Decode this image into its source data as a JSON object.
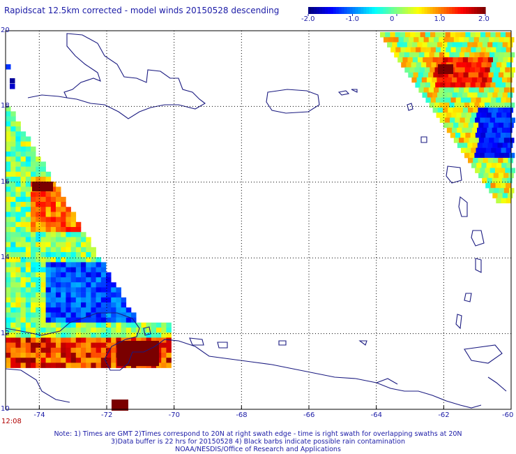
{
  "title": "Rapidscat 12.5km corrected - model winds 20150528 descending",
  "colorbar": {
    "labels": [
      "-2.0",
      "-1.0",
      "0",
      "1.0",
      "2.0"
    ],
    "range": [
      -2.0,
      2.0
    ],
    "colors": [
      "#000080",
      "#0000ff",
      "#0080ff",
      "#00ffff",
      "#80ff80",
      "#ffff00",
      "#ff8000",
      "#ff0000",
      "#800000"
    ]
  },
  "axes": {
    "lon_labels": [
      "-74",
      "-72",
      "-70",
      "-68",
      "-66",
      "-64",
      "-62",
      "-60"
    ],
    "lat_labels": [
      "20",
      "18",
      "16",
      "14",
      "12",
      "10"
    ],
    "lon_range": [
      -75,
      -60
    ],
    "lat_range": [
      10,
      20
    ]
  },
  "time_label": "12:08",
  "notes": [
    "Note: 1) Times are GMT 2)Times correspond to 20N at right swath edge - time is right swath for overlapping swaths at 20N",
    "3)Data buffer is 22 hrs for 20150528 4) Black barbs indicate possible rain contamination",
    "NOAA/NESDIS/Office of Research and Applications"
  ]
}
